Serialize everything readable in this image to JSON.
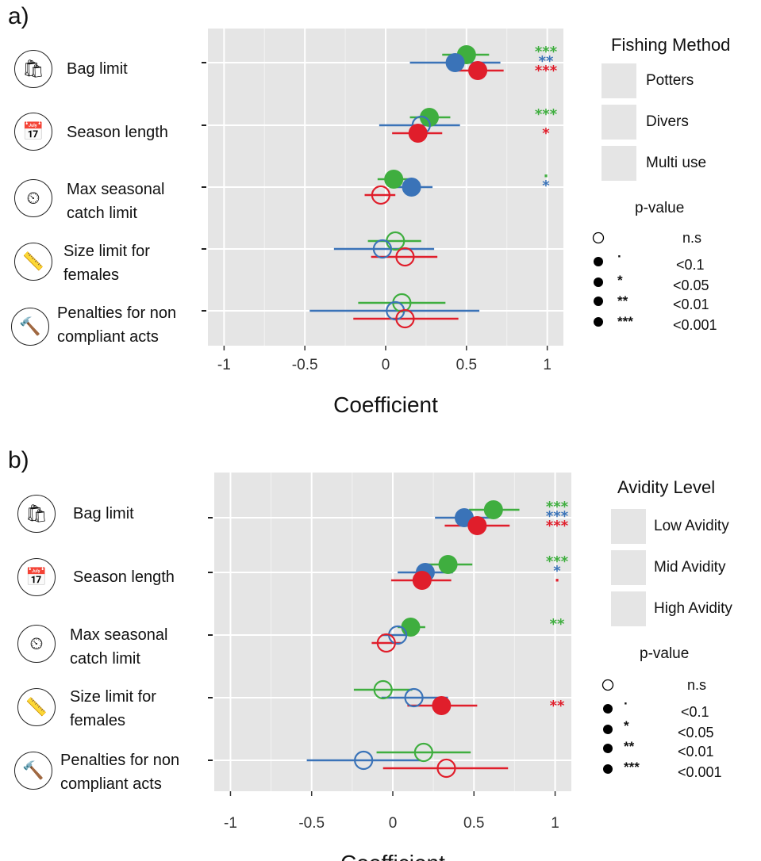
{
  "chart_data": [
    {
      "type": "scatter",
      "panel_label": "a)",
      "xlabel": "Coefficient",
      "xticks": [
        "-1",
        "-0.5",
        "0",
        "0.5",
        "1"
      ],
      "xlim": [
        -1.1,
        1.1
      ],
      "categories": [
        "Bag limit",
        "Season length",
        "Max seasonal\ncatch limit",
        "Size limit for\nfemales",
        "Penalties for non\ncompliant acts"
      ],
      "category_icons": [
        "bag-icon",
        "calendar-icon",
        "gauge-icon",
        "ruler-icon",
        "gavel-icon"
      ],
      "legend_title": "Fishing Method",
      "series": [
        {
          "name": "Potters",
          "color": "#3fae3f",
          "points": [
            {
              "estimate": 0.5,
              "low": 0.35,
              "high": 0.64,
              "significant": true,
              "stars": "***"
            },
            {
              "estimate": 0.27,
              "low": 0.15,
              "high": 0.4,
              "significant": true,
              "stars": "***"
            },
            {
              "estimate": 0.05,
              "low": -0.05,
              "high": 0.15,
              "significant": true,
              "stars": "·"
            },
            {
              "estimate": 0.06,
              "low": -0.11,
              "high": 0.22,
              "significant": false,
              "stars": ""
            },
            {
              "estimate": 0.1,
              "low": -0.17,
              "high": 0.37,
              "significant": false,
              "stars": ""
            }
          ]
        },
        {
          "name": "Divers",
          "color": "#3a73b8",
          "points": [
            {
              "estimate": 0.43,
              "low": 0.15,
              "high": 0.71,
              "significant": true,
              "stars": "**"
            },
            {
              "estimate": 0.22,
              "low": -0.04,
              "high": 0.46,
              "significant": false,
              "stars": ""
            },
            {
              "estimate": 0.16,
              "low": 0.03,
              "high": 0.29,
              "significant": true,
              "stars": "*"
            },
            {
              "estimate": -0.02,
              "low": -0.32,
              "high": 0.3,
              "significant": false,
              "stars": ""
            },
            {
              "estimate": 0.06,
              "low": -0.47,
              "high": 0.58,
              "significant": false,
              "stars": ""
            }
          ]
        },
        {
          "name": "Multi use",
          "color": "#e01e2b",
          "points": [
            {
              "estimate": 0.57,
              "low": 0.41,
              "high": 0.73,
              "significant": true,
              "stars": "***"
            },
            {
              "estimate": 0.2,
              "low": 0.04,
              "high": 0.35,
              "significant": true,
              "stars": "*"
            },
            {
              "estimate": -0.03,
              "low": -0.13,
              "high": 0.06,
              "significant": false,
              "stars": ""
            },
            {
              "estimate": 0.12,
              "low": -0.09,
              "high": 0.32,
              "significant": false,
              "stars": ""
            },
            {
              "estimate": 0.12,
              "low": -0.2,
              "high": 0.45,
              "significant": false,
              "stars": ""
            }
          ]
        }
      ]
    },
    {
      "type": "scatter",
      "panel_label": "b)",
      "xlabel": "Coefficient",
      "xticks": [
        "-1",
        "-0.5",
        "0",
        "0.5",
        "1"
      ],
      "xlim": [
        -1.1,
        1.1
      ],
      "categories": [
        "Bag limit",
        "Season length",
        "Max seasonal\ncatch limit",
        "Size limit for\nfemales",
        "Penalties for non\ncompliant acts"
      ],
      "category_icons": [
        "bag-icon",
        "calendar-icon",
        "gauge-icon",
        "ruler-icon",
        "gavel-icon"
      ],
      "legend_title": "Avidity Level",
      "series": [
        {
          "name": "Low Avidity",
          "color": "#3fae3f",
          "points": [
            {
              "estimate": 0.62,
              "low": 0.47,
              "high": 0.78,
              "significant": true,
              "stars": "***"
            },
            {
              "estimate": 0.34,
              "low": 0.2,
              "high": 0.49,
              "significant": true,
              "stars": "***"
            },
            {
              "estimate": 0.11,
              "low": 0.03,
              "high": 0.2,
              "significant": true,
              "stars": "**"
            },
            {
              "estimate": -0.06,
              "low": -0.24,
              "high": 0.12,
              "significant": false,
              "stars": ""
            },
            {
              "estimate": 0.19,
              "low": -0.1,
              "high": 0.48,
              "significant": false,
              "stars": ""
            }
          ]
        },
        {
          "name": "Mid Avidity",
          "color": "#3a73b8",
          "points": [
            {
              "estimate": 0.44,
              "low": 0.26,
              "high": 0.61,
              "significant": true,
              "stars": "***"
            },
            {
              "estimate": 0.2,
              "low": 0.03,
              "high": 0.37,
              "significant": true,
              "stars": "*"
            },
            {
              "estimate": 0.03,
              "low": -0.07,
              "high": 0.13,
              "significant": false,
              "stars": ""
            },
            {
              "estimate": 0.13,
              "low": -0.07,
              "high": 0.34,
              "significant": false,
              "stars": ""
            },
            {
              "estimate": -0.18,
              "low": -0.53,
              "high": 0.17,
              "significant": false,
              "stars": ""
            }
          ]
        },
        {
          "name": "High Avidity",
          "color": "#e01e2b",
          "points": [
            {
              "estimate": 0.52,
              "low": 0.32,
              "high": 0.72,
              "significant": true,
              "stars": "***"
            },
            {
              "estimate": 0.18,
              "low": -0.01,
              "high": 0.36,
              "significant": true,
              "stars": "·"
            },
            {
              "estimate": -0.04,
              "low": -0.13,
              "high": 0.05,
              "significant": false,
              "stars": ""
            },
            {
              "estimate": 0.3,
              "low": 0.09,
              "high": 0.52,
              "significant": true,
              "stars": "**"
            },
            {
              "estimate": 0.33,
              "low": -0.06,
              "high": 0.71,
              "significant": false,
              "stars": ""
            }
          ]
        }
      ]
    }
  ],
  "pvalue_legend": {
    "title": "p-value",
    "rows": [
      {
        "symbol": "",
        "label": "n.s",
        "filled": false
      },
      {
        "symbol": "·",
        "label": "<0.1",
        "filled": true
      },
      {
        "symbol": "*",
        "label": "<0.05",
        "filled": true
      },
      {
        "symbol": "**",
        "label": "<0.01",
        "filled": true
      },
      {
        "symbol": "***",
        "label": "<0.001",
        "filled": true
      }
    ]
  }
}
